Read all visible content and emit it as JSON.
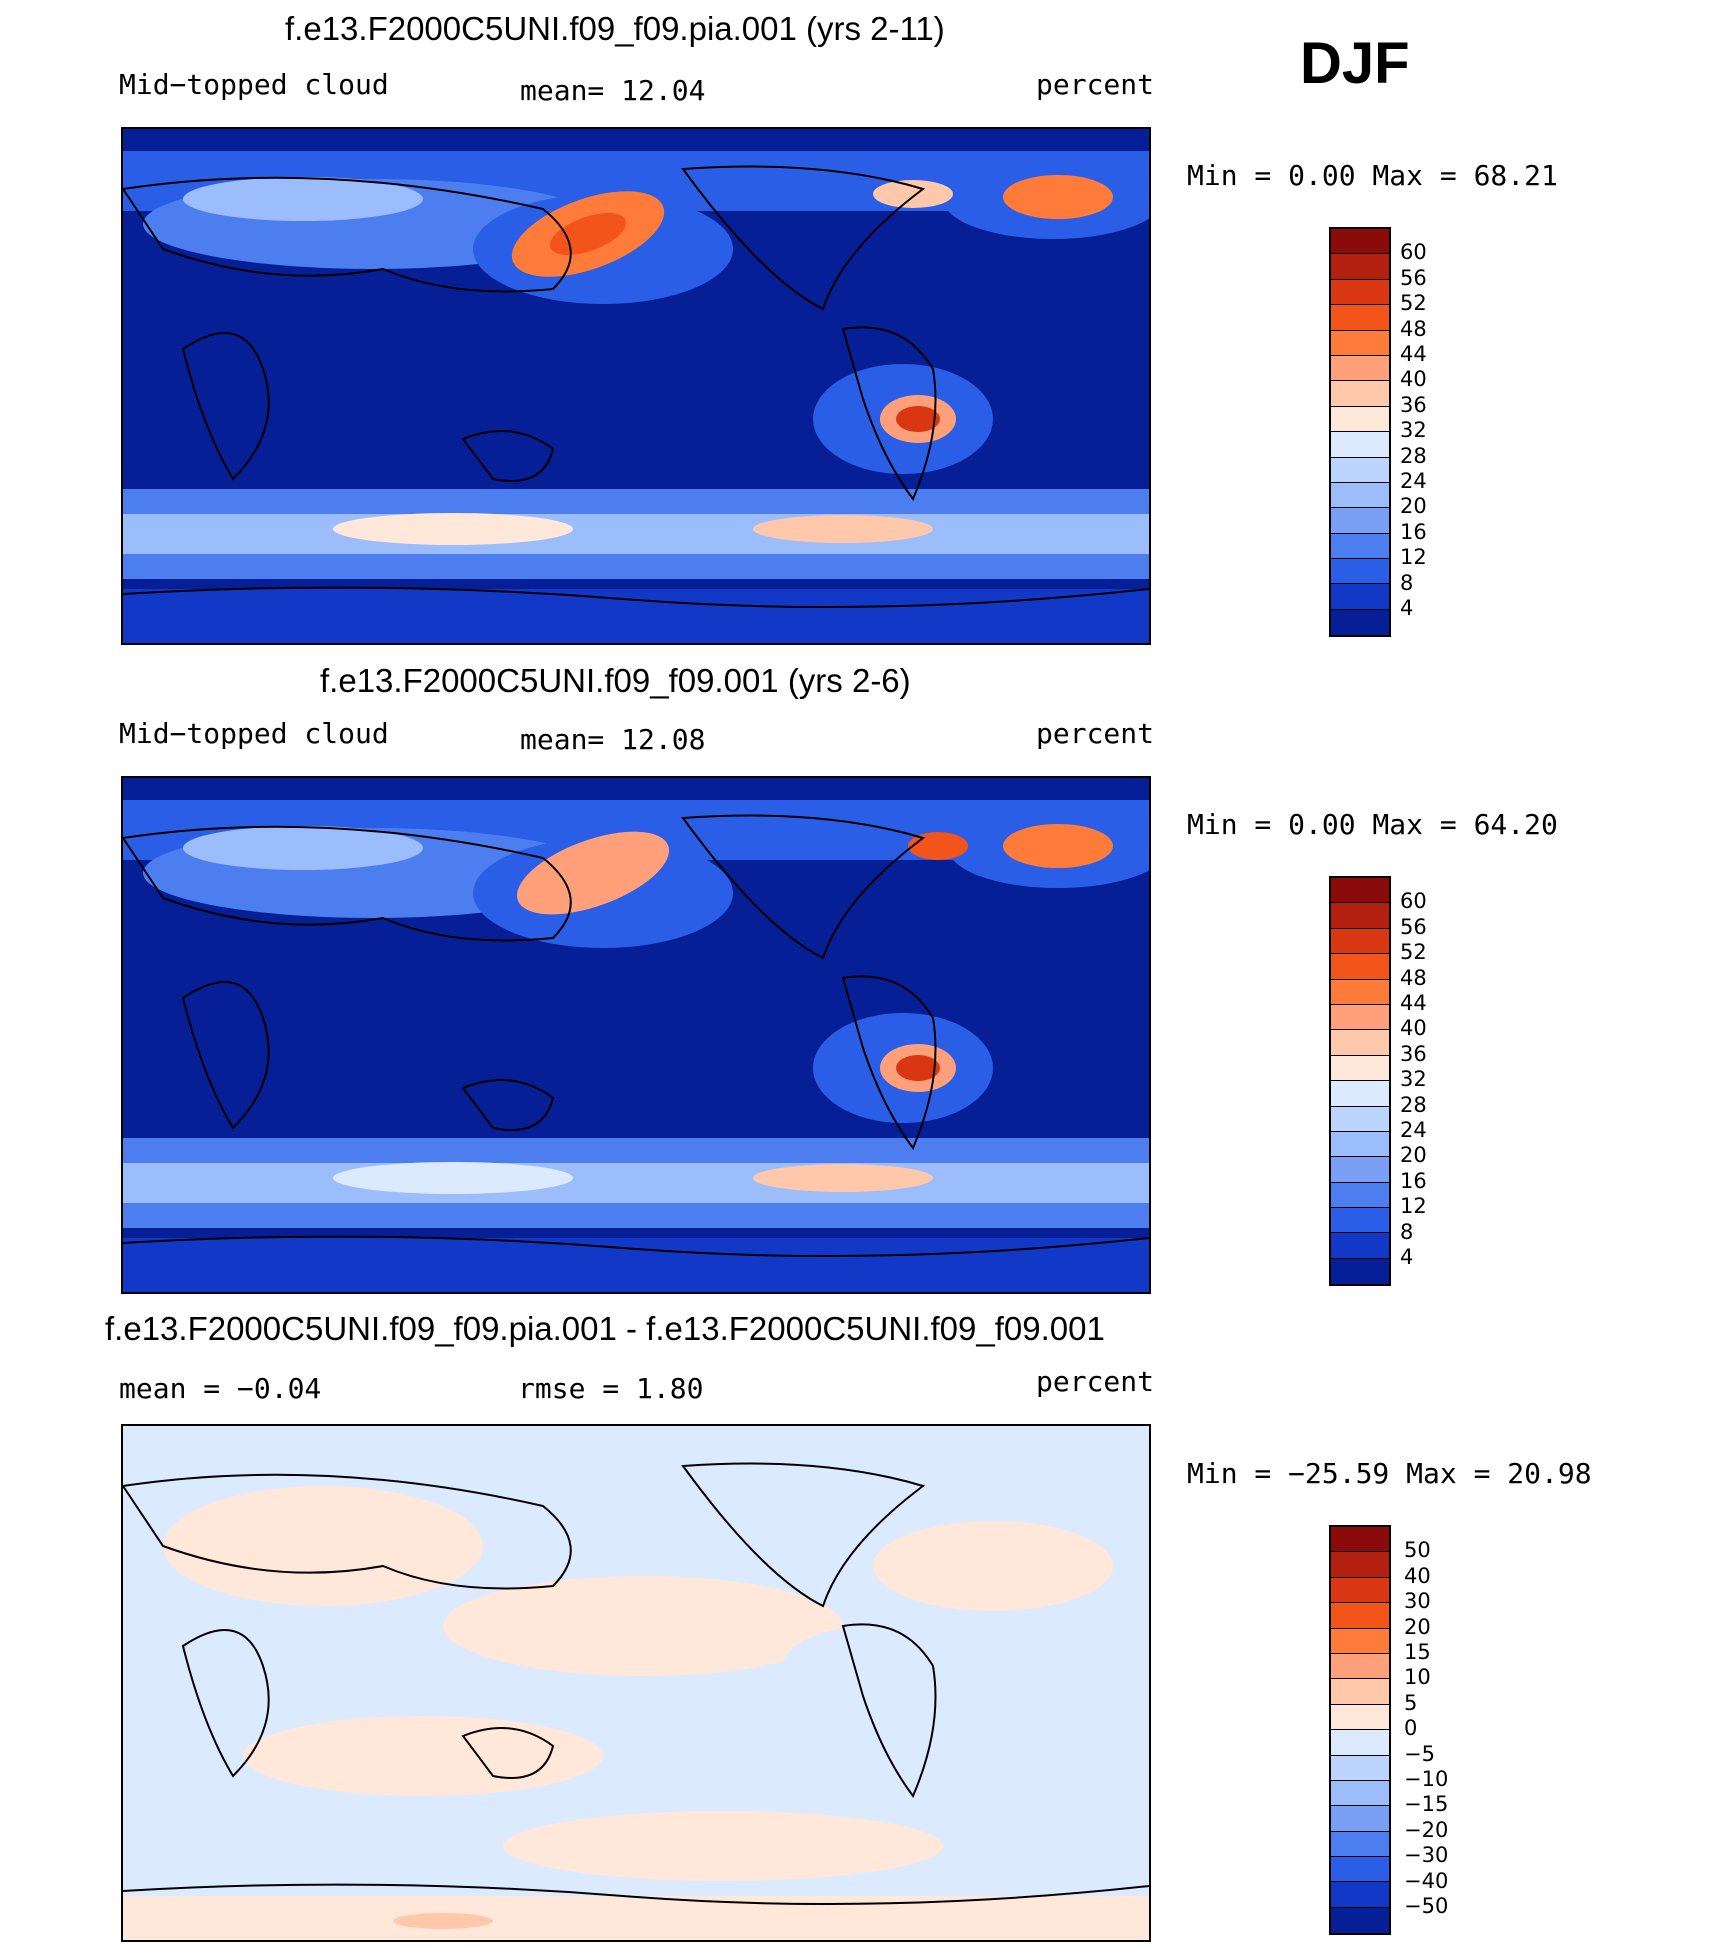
{
  "season": "DJF",
  "chart_data": [
    {
      "type": "heatmap",
      "title": "f.e13.F2000C5UNI.f09_f09.pia.001 (yrs 2-11)",
      "left_label": "Mid−topped cloud",
      "center_label": "mean=   12.04",
      "right_label": "percent",
      "minmax_label": "Min =     0.00 Max =   68.21",
      "mean": 12.04,
      "min": 0.0,
      "max": 68.21,
      "colorbar_ticks": [
        "60",
        "56",
        "52",
        "48",
        "44",
        "40",
        "36",
        "32",
        "28",
        "24",
        "20",
        "16",
        "12",
        "8",
        "4"
      ],
      "colorbar_colors": [
        "#8b0a0a",
        "#b3200f",
        "#d93612",
        "#f2541a",
        "#ff7b3a",
        "#ffa07a",
        "#ffc8aa",
        "#ffe7da",
        "#dceaff",
        "#bcd5ff",
        "#9bbdfc",
        "#7aa0f5",
        "#4d7ef0",
        "#2b5ee6",
        "#1238c8",
        "#061f96"
      ]
    },
    {
      "type": "heatmap",
      "title": "f.e13.F2000C5UNI.f09_f09.001 (yrs 2-6)",
      "left_label": "Mid−topped cloud",
      "center_label": "mean=   12.08",
      "right_label": "percent",
      "minmax_label": "Min =     0.00 Max =   64.20",
      "mean": 12.08,
      "min": 0.0,
      "max": 64.2,
      "colorbar_ticks": [
        "60",
        "56",
        "52",
        "48",
        "44",
        "40",
        "36",
        "32",
        "28",
        "24",
        "20",
        "16",
        "12",
        "8",
        "4"
      ],
      "colorbar_colors": [
        "#8b0a0a",
        "#b3200f",
        "#d93612",
        "#f2541a",
        "#ff7b3a",
        "#ffa07a",
        "#ffc8aa",
        "#ffe7da",
        "#dceaff",
        "#bcd5ff",
        "#9bbdfc",
        "#7aa0f5",
        "#4d7ef0",
        "#2b5ee6",
        "#1238c8",
        "#061f96"
      ]
    },
    {
      "type": "heatmap",
      "title": "f.e13.F2000C5UNI.f09_f09.pia.001 - f.e13.F2000C5UNI.f09_f09.001",
      "left_label": "mean =   −0.04",
      "center_label": "rmse =     1.80",
      "right_label": "percent",
      "minmax_label": "Min = −25.59  Max =   20.98",
      "mean": -0.04,
      "rmse": 1.8,
      "min": -25.59,
      "max": 20.98,
      "colorbar_ticks": [
        "50",
        "40",
        "30",
        "20",
        "15",
        "10",
        "5",
        "0",
        "−5",
        "−10",
        "−15",
        "−20",
        "−30",
        "−40",
        "−50"
      ],
      "colorbar_colors": [
        "#8b0a0a",
        "#b3200f",
        "#d93612",
        "#f2541a",
        "#ff7b3a",
        "#ffa07a",
        "#ffc8aa",
        "#ffe7da",
        "#dceaff",
        "#bcd5ff",
        "#9bbdfc",
        "#7aa0f5",
        "#4d7ef0",
        "#2b5ee6",
        "#1238c8",
        "#061f96"
      ]
    }
  ]
}
